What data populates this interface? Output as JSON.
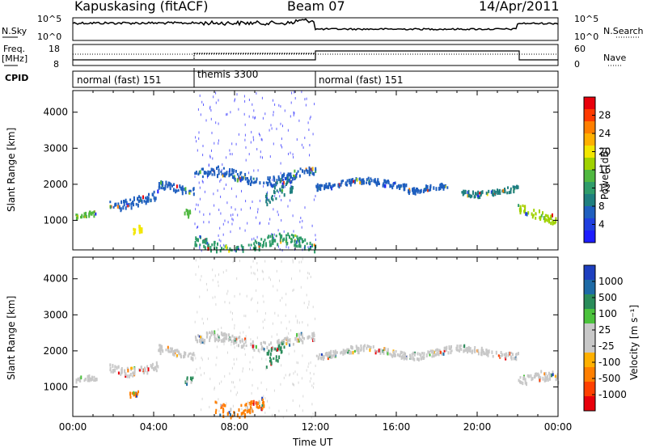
{
  "header": {
    "station": "Kapuskasing (fitACF)",
    "beam": "Beam 07",
    "date": "14/Apr/2011"
  },
  "top_panels": {
    "nsky_label": "N.Sky",
    "nsky_ticks": [
      "10^5",
      "10^0"
    ],
    "nsearch_label": "N.Search",
    "nsearch_ticks": [
      "10^5",
      "10^0"
    ],
    "freq_label_1": "Freq.",
    "freq_label_2": "[MHz]",
    "freq_ticks": [
      "18",
      "8"
    ],
    "nave_label": "Nave",
    "nave_ticks": [
      "60",
      "0"
    ],
    "cpid_label": "CPID",
    "cpid_modes": [
      {
        "label": "normal (fast) 151",
        "start_h": 0,
        "end_h": 6
      },
      {
        "label": "themis 3300",
        "start_h": 6,
        "end_h": 12
      },
      {
        "label": "normal (fast) 151",
        "start_h": 12,
        "end_h": 24
      }
    ]
  },
  "chart_data": [
    {
      "type": "heatmap",
      "name": "power_panel",
      "xlabel": "",
      "ylabel": "Slant Range [km]",
      "xlim": [
        0,
        24
      ],
      "ylim": [
        180,
        4600
      ],
      "yticks": [
        1000,
        2000,
        3000,
        4000
      ],
      "colorbar": {
        "label": "Power [dB]",
        "ticks": [
          "28",
          "24",
          "20",
          "16",
          "12",
          "8",
          "4"
        ],
        "colors": [
          "#e8000b",
          "#ff3a00",
          "#ff7f00",
          "#ffb000",
          "#f2e600",
          "#a0d200",
          "#50b840",
          "#2f9c6a",
          "#1f7f7f",
          "#1f5fbf",
          "#1f3fdf",
          "#1d1dff"
        ]
      },
      "echo_bands": [
        {
          "start_h": 0.1,
          "end_h": 1.1,
          "center_km": 1150,
          "width_km": 140,
          "power": 13
        },
        {
          "start_h": 2.9,
          "end_h": 3.4,
          "center_km": 900,
          "width_km": 200,
          "power": 18
        },
        {
          "start_h": 1.8,
          "end_h": 4.2,
          "center_km": 1600,
          "width_km": 250,
          "power": 6
        },
        {
          "start_h": 4.2,
          "end_h": 6.0,
          "center_km": 1950,
          "width_km": 200,
          "power": 6
        },
        {
          "start_h": 5.5,
          "end_h": 5.9,
          "center_km": 1350,
          "width_km": 200,
          "power": 13
        },
        {
          "start_h": 6.0,
          "end_h": 12.0,
          "center_km": 2250,
          "width_km": 250,
          "power": 5
        },
        {
          "start_h": 9.5,
          "end_h": 11.0,
          "center_km": 1800,
          "width_km": 500,
          "power": 8
        },
        {
          "start_h": 6.0,
          "end_h": 12.0,
          "center_km": 350,
          "width_km": 300,
          "power": 12
        },
        {
          "start_h": 12.0,
          "end_h": 16.5,
          "center_km": 2050,
          "width_km": 150,
          "power": 5
        },
        {
          "start_h": 16.5,
          "end_h": 18.5,
          "center_km": 1900,
          "width_km": 150,
          "power": 5
        },
        {
          "start_h": 19.2,
          "end_h": 22.0,
          "center_km": 1850,
          "width_km": 150,
          "power": 7
        },
        {
          "start_h": 22.0,
          "end_h": 24.0,
          "center_km": 1200,
          "width_km": 250,
          "power": 16
        }
      ]
    },
    {
      "type": "heatmap",
      "name": "velocity_panel",
      "xlabel": "Time UT",
      "ylabel": "Slant Range [km]",
      "xlim": [
        0,
        24
      ],
      "ylim": [
        180,
        4600
      ],
      "xticks": [
        "00:00",
        "04:00",
        "08:00",
        "12:00",
        "16:00",
        "20:00",
        "00:00"
      ],
      "yticks": [
        1000,
        2000,
        3000,
        4000
      ],
      "colorbar": {
        "label": "Velocity [m s⁻¹]",
        "ticks": [
          "1000",
          "500",
          "100",
          "25",
          "-25",
          "-100",
          "-500",
          "-1000"
        ],
        "colors": [
          "#1d3fbf",
          "#1d6aa5",
          "#2a8c5a",
          "#4bc23c",
          "#c8c8c8",
          "#c8c8c8",
          "#ffb000",
          "#ff7f00",
          "#ff4000",
          "#e8000b"
        ]
      },
      "echo_bands": [
        {
          "start_h": 0.1,
          "end_h": 1.2,
          "center_km": 1200,
          "width_km": 150,
          "velocity": 0
        },
        {
          "start_h": 1.8,
          "end_h": 4.2,
          "center_km": 1600,
          "width_km": 250,
          "velocity": 0
        },
        {
          "start_h": 2.8,
          "end_h": 3.3,
          "center_km": 850,
          "width_km": 150,
          "velocity": -300
        },
        {
          "start_h": 4.2,
          "end_h": 6.0,
          "center_km": 2000,
          "width_km": 200,
          "velocity": 0
        },
        {
          "start_h": 5.5,
          "end_h": 5.9,
          "center_km": 1350,
          "width_km": 200,
          "velocity": 150
        },
        {
          "start_h": 6.0,
          "end_h": 12.0,
          "center_km": 2300,
          "width_km": 250,
          "velocity": 0
        },
        {
          "start_h": 9.5,
          "end_h": 10.5,
          "center_km": 1900,
          "width_km": 450,
          "velocity": 120
        },
        {
          "start_h": 7.0,
          "end_h": 9.5,
          "center_km": 550,
          "width_km": 350,
          "velocity": -150
        },
        {
          "start_h": 12.0,
          "end_h": 22.0,
          "center_km": 2000,
          "width_km": 180,
          "velocity": 0
        },
        {
          "start_h": 22.0,
          "end_h": 24.0,
          "center_km": 1200,
          "width_km": 250,
          "velocity": 0
        }
      ]
    }
  ]
}
